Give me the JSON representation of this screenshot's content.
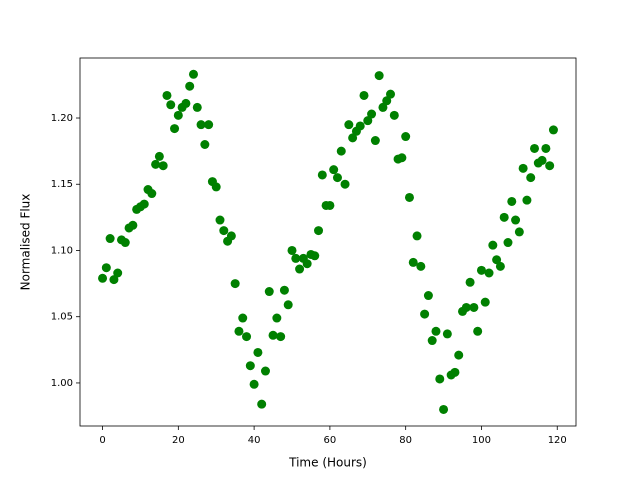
{
  "chart_data": {
    "type": "scatter",
    "x_label": "Time (Hours)",
    "y_label": "Normalised Flux",
    "series": [
      {
        "color": "#008000",
        "x": [
          0,
          1,
          2,
          3,
          4,
          5,
          6,
          7,
          8,
          9,
          10,
          11,
          12,
          13,
          14,
          15,
          16,
          17,
          18,
          19,
          20,
          21,
          22,
          23,
          24,
          25,
          26,
          27,
          28,
          29,
          30,
          31,
          32,
          33,
          34,
          35,
          36,
          37,
          38,
          39,
          40,
          41,
          42,
          43,
          44,
          45,
          46,
          47,
          48,
          49,
          50,
          51,
          52,
          53,
          54,
          55,
          56,
          57,
          58,
          59,
          60,
          61,
          62,
          63,
          64,
          65,
          66,
          67,
          68,
          69,
          70,
          71,
          72,
          73,
          74,
          75,
          76,
          77,
          78,
          79,
          80,
          81,
          82,
          83,
          84,
          85,
          86,
          87,
          88,
          89,
          90,
          91,
          92,
          93,
          94,
          95,
          96,
          97,
          98,
          99,
          100,
          101,
          102,
          103,
          104,
          105,
          106,
          107,
          108,
          109,
          110,
          111,
          112,
          113,
          114,
          115,
          116,
          117,
          118,
          119
        ],
        "values": [
          1.079,
          1.087,
          1.109,
          1.078,
          1.083,
          1.108,
          1.106,
          1.117,
          1.119,
          1.131,
          1.133,
          1.135,
          1.146,
          1.143,
          1.165,
          1.171,
          1.164,
          1.217,
          1.21,
          1.192,
          1.202,
          1.208,
          1.211,
          1.224,
          1.233,
          1.208,
          1.195,
          1.18,
          1.195,
          1.152,
          1.148,
          1.123,
          1.115,
          1.107,
          1.111,
          1.075,
          1.039,
          1.049,
          1.035,
          1.013,
          0.999,
          1.023,
          0.984,
          1.009,
          1.069,
          1.036,
          1.049,
          1.035,
          1.07,
          1.059,
          1.1,
          1.094,
          1.086,
          1.094,
          1.09,
          1.097,
          1.096,
          1.115,
          1.157,
          1.134,
          1.134,
          1.161,
          1.155,
          1.175,
          1.15,
          1.195,
          1.185,
          1.19,
          1.194,
          1.217,
          1.198,
          1.203,
          1.183,
          1.232,
          1.208,
          1.213,
          1.218,
          1.202,
          1.169,
          1.17,
          1.186,
          1.14,
          1.091,
          1.111,
          1.088,
          1.052,
          1.066,
          1.032,
          1.039,
          1.003,
          0.98,
          1.037,
          1.006,
          1.008,
          1.021,
          1.054,
          1.057,
          1.076,
          1.057,
          1.039,
          1.085,
          1.061,
          1.083,
          1.104,
          1.093,
          1.088,
          1.125,
          1.106,
          1.137,
          1.123,
          1.114,
          1.162,
          1.138,
          1.155,
          1.177,
          1.166,
          1.168,
          1.177,
          1.164,
          1.191
        ]
      }
    ],
    "xlim": [
      -5.95,
      124.95
    ],
    "xticks": [
      0,
      20,
      40,
      60,
      80,
      100,
      120
    ],
    "ylim": [
      0.9675,
      1.2453
    ],
    "yticks": [
      {
        "value": 1,
        "label": "1.00"
      },
      1.05,
      {
        "value": 1.1,
        "label": "1.10"
      },
      1.15,
      {
        "value": 1.2,
        "label": "1.20"
      }
    ]
  }
}
